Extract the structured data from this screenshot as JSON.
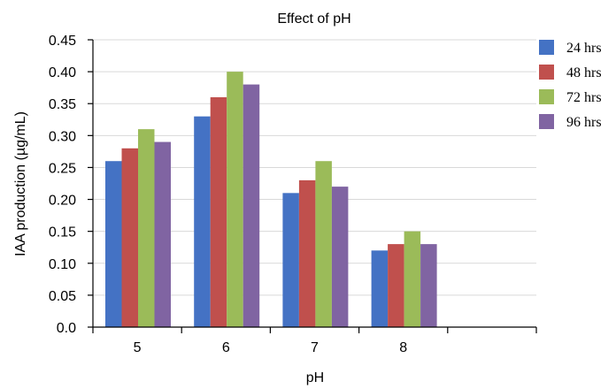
{
  "chart_data": {
    "type": "bar",
    "title": "Effect of pH",
    "xlabel": "pH",
    "ylabel": "IAA production (µg/mL)",
    "categories": [
      "5",
      "6",
      "7",
      "8",
      ""
    ],
    "ylim": [
      0,
      0.45
    ],
    "yticks": [
      "0.0",
      "0.05",
      "0.10",
      "0.15",
      "0.20",
      "0.25",
      "0.30",
      "0.35",
      "0.40",
      "0.45"
    ],
    "grid": true,
    "legend_position": "right",
    "series": [
      {
        "name": "24 hrs",
        "color": "#4472C4",
        "values": [
          0.26,
          0.33,
          0.21,
          0.12,
          null
        ]
      },
      {
        "name": "48 hrs",
        "color": "#C0504D",
        "values": [
          0.28,
          0.36,
          0.23,
          0.13,
          null
        ]
      },
      {
        "name": "72 hrs",
        "color": "#9BBB59",
        "values": [
          0.31,
          0.4,
          0.26,
          0.15,
          null
        ]
      },
      {
        "name": "96 hrs",
        "color": "#8064A2",
        "values": [
          0.29,
          0.38,
          0.22,
          0.13,
          null
        ]
      }
    ]
  }
}
